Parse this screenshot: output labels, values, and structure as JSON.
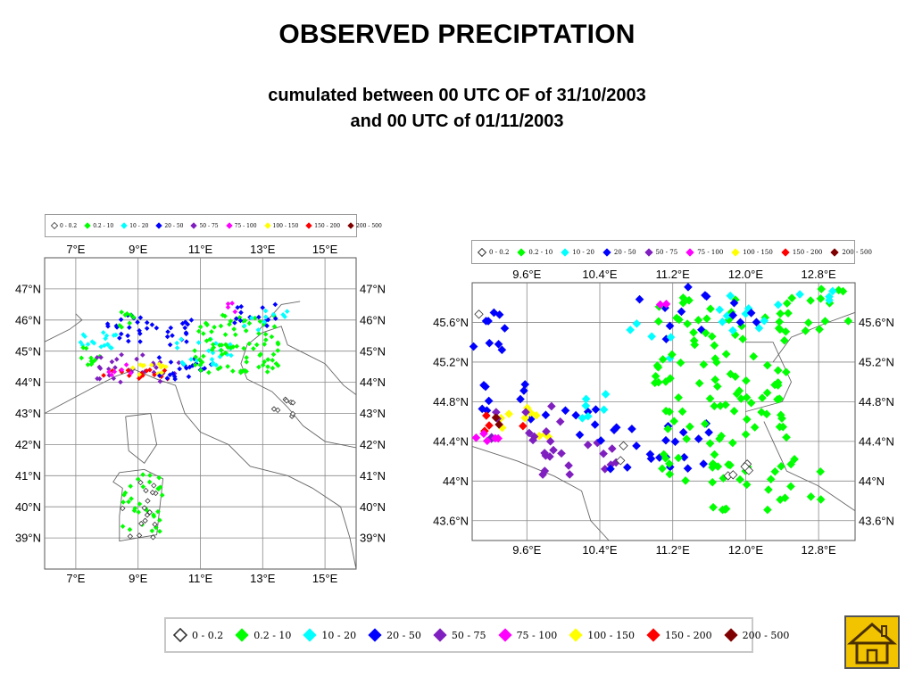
{
  "header": {
    "title": "OBSERVED PRECIPTATION",
    "subtitle_line1": "cumulated between 00 UTC OF of 31/10/2003",
    "subtitle_line2": "and 00 UTC of 01/11/2003"
  },
  "legend": {
    "classes": [
      {
        "label": "0 - 0.2",
        "color": "#ffffff",
        "hollow": true
      },
      {
        "label": "0.2 - 10",
        "color": "#00ff00"
      },
      {
        "label": "10 - 20",
        "color": "#00ffff"
      },
      {
        "label": "20 - 50",
        "color": "#0000ff"
      },
      {
        "label": "50 - 75",
        "color": "#7f1fbf"
      },
      {
        "label": "75 - 100",
        "color": "#ff00ff"
      },
      {
        "label": "100 - 150",
        "color": "#ffff00"
      },
      {
        "label": "150 - 200",
        "color": "#ff0000"
      },
      {
        "label": "200 - 500",
        "color": "#7f0000"
      }
    ]
  },
  "map_overview": {
    "lon_range": [
      6,
      16
    ],
    "lat_range": [
      38,
      48
    ],
    "lon_ticks": [
      "7°E",
      "9°E",
      "11°E",
      "13°E",
      "15°E"
    ],
    "lat_ticks": [
      "47°N",
      "46°N",
      "45°N",
      "44°N",
      "43°N",
      "42°N",
      "41°N",
      "40°N",
      "39°N"
    ]
  },
  "map_zoom": {
    "lon_range": [
      9.0,
      13.2
    ],
    "lat_range": [
      43.4,
      46.0
    ],
    "lon_ticks": [
      "9.6°E",
      "10.4°E",
      "11.2°E",
      "12.0°E",
      "12.8°E"
    ],
    "lat_ticks": [
      "45.6°N",
      "45.2°N",
      "44.8°N",
      "44.4°N",
      "44°N",
      "43.6°N"
    ]
  },
  "nav": {
    "home_icon": "house-icon"
  }
}
